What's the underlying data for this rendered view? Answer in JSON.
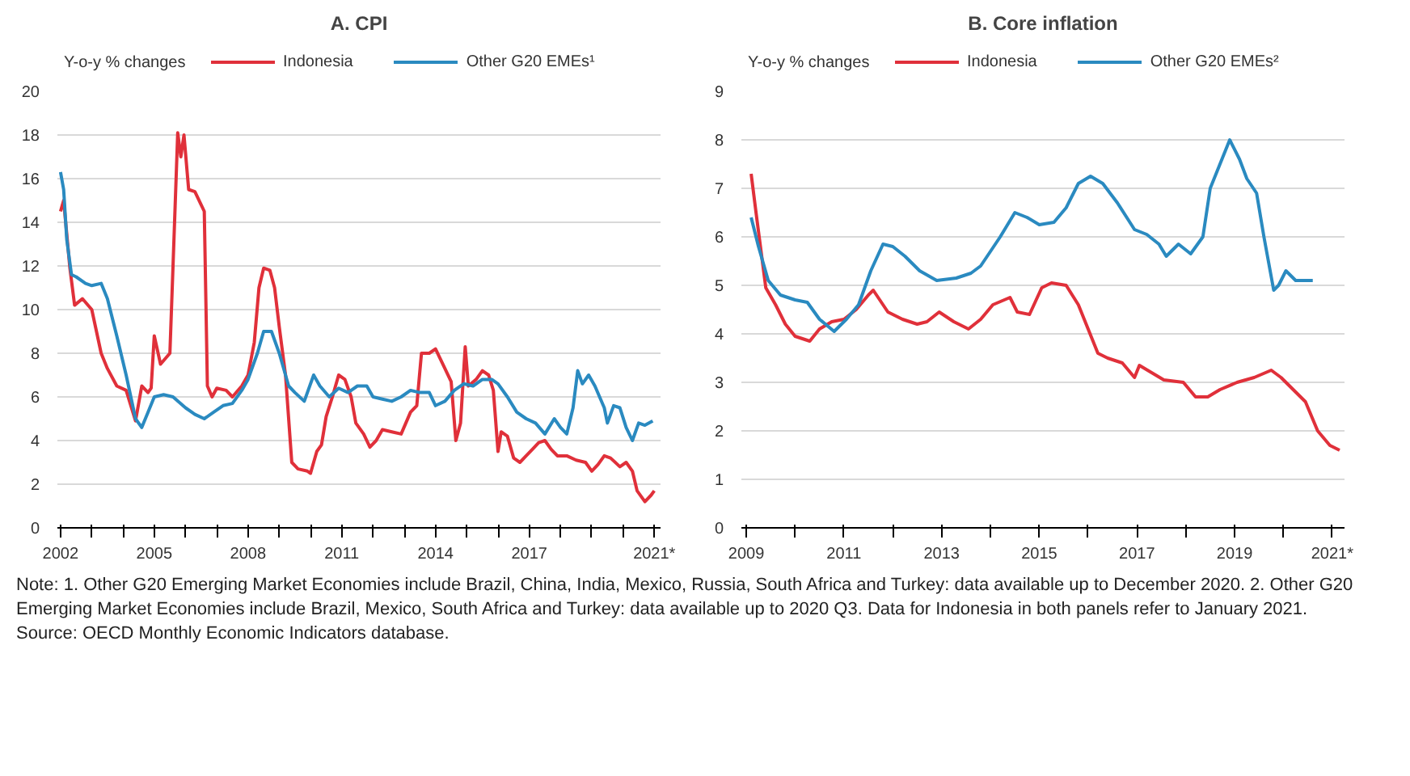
{
  "chart_data": [
    {
      "type": "line",
      "title": "A. CPI",
      "ylabel": "Y-o-y % changes",
      "legend": "top",
      "grid": "y",
      "marker": "none",
      "line_style": "solid",
      "xlim": [
        2001.9,
        2021.2
      ],
      "ylim": [
        0,
        20
      ],
      "yticks": [
        0,
        2,
        4,
        6,
        8,
        10,
        12,
        14,
        16,
        18,
        20
      ],
      "xticks": [
        2002,
        {
          "value": 2003,
          "label": null
        },
        {
          "value": 2004,
          "label": null
        },
        2005,
        {
          "value": 2006,
          "label": null
        },
        {
          "value": 2007,
          "label": null
        },
        2008,
        {
          "value": 2009,
          "label": null
        },
        {
          "value": 2010,
          "label": null
        },
        2011,
        {
          "value": 2012,
          "label": null
        },
        {
          "value": 2013,
          "label": null
        },
        2014,
        {
          "value": 2015,
          "label": null
        },
        {
          "value": 2016,
          "label": null
        },
        2017,
        {
          "value": 2018,
          "label": null
        },
        {
          "value": 2019,
          "label": null
        },
        {
          "value": 2020,
          "label": null
        },
        {
          "value": 2021,
          "label": "2021*"
        }
      ],
      "series": [
        {
          "name": "Indonesia",
          "color": "#e0303a",
          "x": [
            2002.0,
            2002.1,
            2002.3,
            2002.45,
            2002.7,
            2003.0,
            2003.3,
            2003.5,
            2003.8,
            2004.1,
            2004.4,
            2004.6,
            2004.8,
            2004.9,
            2005.0,
            2005.2,
            2005.5,
            2005.6,
            2005.75,
            2005.85,
            2005.95,
            2006.1,
            2006.3,
            2006.5,
            2006.6,
            2006.7,
            2006.85,
            2007.0,
            2007.3,
            2007.5,
            2007.8,
            2008.0,
            2008.2,
            2008.35,
            2008.5,
            2008.7,
            2008.85,
            2009.0,
            2009.2,
            2009.4,
            2009.6,
            2009.9,
            2010.0,
            2010.2,
            2010.35,
            2010.5,
            2010.7,
            2010.9,
            2011.1,
            2011.3,
            2011.45,
            2011.7,
            2011.9,
            2012.1,
            2012.3,
            2012.6,
            2012.9,
            2013.2,
            2013.4,
            2013.55,
            2013.8,
            2014.0,
            2014.3,
            2014.5,
            2014.65,
            2014.8,
            2014.95,
            2015.05,
            2015.3,
            2015.5,
            2015.7,
            2015.85,
            2016.0,
            2016.1,
            2016.3,
            2016.5,
            2016.7,
            2016.9,
            2017.1,
            2017.3,
            2017.5,
            2017.7,
            2017.9,
            2018.2,
            2018.5,
            2018.8,
            2019.0,
            2019.2,
            2019.4,
            2019.6,
            2019.9,
            2020.1,
            2020.3,
            2020.45,
            2020.7,
            2020.9,
            2021.0
          ],
          "values": [
            14.5,
            15.0,
            11.9,
            10.2,
            10.5,
            10.0,
            8.0,
            7.3,
            6.5,
            6.3,
            4.9,
            6.5,
            6.2,
            6.4,
            8.8,
            7.5,
            8.0,
            12.0,
            18.1,
            17.0,
            18.0,
            15.5,
            15.4,
            14.8,
            14.5,
            6.5,
            6.0,
            6.4,
            6.3,
            6.0,
            6.5,
            7.0,
            8.5,
            11.0,
            11.9,
            11.8,
            11.0,
            9.2,
            7.0,
            3.0,
            2.7,
            2.6,
            2.5,
            3.5,
            3.8,
            5.1,
            6.0,
            7.0,
            6.8,
            6.0,
            4.8,
            4.3,
            3.7,
            4.0,
            4.5,
            4.4,
            4.3,
            5.3,
            5.6,
            8.0,
            8.0,
            8.2,
            7.3,
            6.7,
            4.0,
            4.8,
            8.3,
            6.5,
            6.8,
            7.2,
            7.0,
            6.3,
            3.5,
            4.4,
            4.2,
            3.2,
            3.0,
            3.3,
            3.6,
            3.9,
            4.0,
            3.6,
            3.3,
            3.3,
            3.1,
            3.0,
            2.6,
            2.9,
            3.3,
            3.2,
            2.8,
            3.0,
            2.6,
            1.7,
            1.2,
            1.5,
            1.7
          ]
        },
        {
          "name": "Other G20 EMEs¹",
          "color": "#2a8ac0",
          "x": [
            2002.0,
            2002.1,
            2002.2,
            2002.35,
            2002.5,
            2002.8,
            2003.0,
            2003.3,
            2003.5,
            2003.8,
            2004.1,
            2004.4,
            2004.6,
            2004.8,
            2005.0,
            2005.3,
            2005.6,
            2006.0,
            2006.3,
            2006.6,
            2006.9,
            2007.2,
            2007.5,
            2007.8,
            2008.0,
            2008.3,
            2008.5,
            2008.75,
            2009.0,
            2009.3,
            2009.5,
            2009.8,
            2010.1,
            2010.3,
            2010.6,
            2010.9,
            2011.2,
            2011.5,
            2011.8,
            2012.0,
            2012.3,
            2012.6,
            2012.9,
            2013.2,
            2013.5,
            2013.8,
            2014.0,
            2014.3,
            2014.6,
            2014.9,
            2015.2,
            2015.5,
            2015.8,
            2016.0,
            2016.3,
            2016.6,
            2016.9,
            2017.2,
            2017.5,
            2017.8,
            2018.0,
            2018.2,
            2018.4,
            2018.55,
            2018.7,
            2018.9,
            2019.1,
            2019.4,
            2019.5,
            2019.7,
            2019.9,
            2020.1,
            2020.3,
            2020.5,
            2020.7,
            2020.95
          ],
          "values": [
            16.3,
            15.5,
            13.2,
            11.6,
            11.5,
            11.2,
            11.1,
            11.2,
            10.5,
            8.8,
            7.0,
            5.0,
            4.6,
            5.3,
            6.0,
            6.1,
            6.0,
            5.5,
            5.2,
            5.0,
            5.3,
            5.6,
            5.7,
            6.3,
            6.8,
            8.0,
            9.0,
            9.0,
            8.0,
            6.5,
            6.2,
            5.8,
            7.0,
            6.5,
            6.0,
            6.4,
            6.2,
            6.5,
            6.5,
            6.0,
            5.9,
            5.8,
            6.0,
            6.3,
            6.2,
            6.2,
            5.6,
            5.8,
            6.3,
            6.6,
            6.5,
            6.8,
            6.8,
            6.6,
            6.0,
            5.3,
            5.0,
            4.8,
            4.3,
            5.0,
            4.6,
            4.3,
            5.5,
            7.2,
            6.6,
            7.0,
            6.5,
            5.5,
            4.8,
            5.6,
            5.5,
            4.6,
            4.0,
            4.8,
            4.7,
            4.9
          ]
        }
      ],
      "annotations": [
        "Note: 1. Other G20 Emerging Market Economies include Brazil, China, India, Mexico, Russia, South Africa and Turkey: data available up to December 2020.  2. Other G20 Emerging Market Economies include Brazil, Mexico, South Africa and Turkey: data available up to 2020 Q3. Data for Indonesia in both panels refer to January 2021.",
        "Source: OECD Monthly Economic Indicators database."
      ]
    },
    {
      "type": "line",
      "title": "B. Core inflation",
      "ylabel": "Y-o-y % changes",
      "legend": "top",
      "grid": "y",
      "marker": "none",
      "line_style": "solid",
      "xlim": [
        2008.9,
        2021.25
      ],
      "ylim": [
        0,
        9
      ],
      "yticks": [
        0,
        1,
        2,
        3,
        4,
        5,
        6,
        7,
        8,
        9
      ],
      "xticks": [
        2009,
        {
          "value": 2010,
          "label": null
        },
        2011,
        {
          "value": 2012,
          "label": null
        },
        2013,
        {
          "value": 2014,
          "label": null
        },
        2015,
        {
          "value": 2016,
          "label": null
        },
        2017,
        {
          "value": 2018,
          "label": null
        },
        2019,
        {
          "value": 2020,
          "label": null
        },
        {
          "value": 2021,
          "label": "2021*"
        }
      ],
      "series": [
        {
          "name": "Indonesia",
          "color": "#e0303a",
          "x": [
            2009.1,
            2009.2,
            2009.4,
            2009.6,
            2009.8,
            2010.0,
            2010.3,
            2010.5,
            2010.75,
            2011.0,
            2011.25,
            2011.5,
            2011.6,
            2011.9,
            2012.2,
            2012.5,
            2012.7,
            2012.95,
            2013.25,
            2013.55,
            2013.8,
            2014.05,
            2014.4,
            2014.55,
            2014.8,
            2015.05,
            2015.25,
            2015.55,
            2015.8,
            2016.0,
            2016.2,
            2016.4,
            2016.7,
            2016.95,
            2017.05,
            2017.3,
            2017.55,
            2017.95,
            2018.2,
            2018.45,
            2018.7,
            2019.05,
            2019.4,
            2019.75,
            2019.95,
            2020.2,
            2020.45,
            2020.7,
            2020.95,
            2021.15
          ],
          "values": [
            7.3,
            6.5,
            4.95,
            4.6,
            4.2,
            3.95,
            3.85,
            4.1,
            4.25,
            4.3,
            4.5,
            4.8,
            4.9,
            4.45,
            4.3,
            4.2,
            4.25,
            4.45,
            4.25,
            4.1,
            4.3,
            4.6,
            4.75,
            4.45,
            4.4,
            4.95,
            5.05,
            5.0,
            4.6,
            4.1,
            3.6,
            3.5,
            3.4,
            3.1,
            3.35,
            3.2,
            3.05,
            3.0,
            2.7,
            2.7,
            2.85,
            3.0,
            3.1,
            3.25,
            3.1,
            2.85,
            2.6,
            2.0,
            1.7,
            1.6
          ]
        },
        {
          "name": "Other G20 EMEs²",
          "color": "#2a8ac0",
          "x": [
            2009.1,
            2009.25,
            2009.45,
            2009.7,
            2010.0,
            2010.25,
            2010.5,
            2010.8,
            2011.05,
            2011.3,
            2011.55,
            2011.8,
            2012.0,
            2012.25,
            2012.55,
            2012.9,
            2013.3,
            2013.6,
            2013.8,
            2014.2,
            2014.5,
            2014.75,
            2015.0,
            2015.3,
            2015.55,
            2015.8,
            2016.05,
            2016.3,
            2016.6,
            2016.95,
            2017.2,
            2017.45,
            2017.6,
            2017.85,
            2018.1,
            2018.35,
            2018.5,
            2018.7,
            2018.9,
            2019.1,
            2019.25,
            2019.45,
            2019.6,
            2019.8,
            2019.9,
            2020.05,
            2020.25,
            2020.6
          ],
          "values": [
            6.4,
            5.8,
            5.1,
            4.8,
            4.7,
            4.65,
            4.3,
            4.05,
            4.3,
            4.6,
            5.3,
            5.85,
            5.8,
            5.6,
            5.3,
            5.1,
            5.15,
            5.25,
            5.4,
            6.0,
            6.5,
            6.4,
            6.25,
            6.3,
            6.6,
            7.1,
            7.25,
            7.1,
            6.7,
            6.15,
            6.05,
            5.85,
            5.6,
            5.85,
            5.65,
            6.0,
            7.0,
            7.5,
            8.0,
            7.6,
            7.2,
            6.9,
            6.0,
            4.9,
            5.0,
            5.3,
            5.1,
            5.1
          ]
        }
      ]
    }
  ]
}
